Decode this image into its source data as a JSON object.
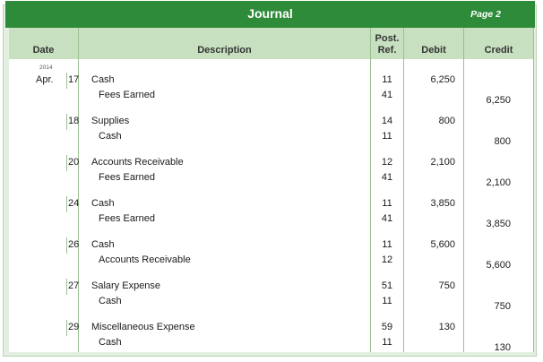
{
  "journal": {
    "title": "Journal",
    "page": "Page 2",
    "headers": {
      "date": "Date",
      "description": "Description",
      "post_ref": [
        "Post.",
        "Ref."
      ],
      "debit": "Debit",
      "credit": "Credit"
    },
    "year": "2014",
    "month": "Apr.",
    "entries": [
      {
        "day": "17",
        "lines": [
          {
            "desc": "Cash",
            "indent": false,
            "ref": "11",
            "debit": "6,250",
            "credit": ""
          },
          {
            "desc": "Fees Earned",
            "indent": true,
            "ref": "41",
            "debit": "",
            "credit": "6,250"
          }
        ]
      },
      {
        "day": "18",
        "lines": [
          {
            "desc": "Supplies",
            "indent": false,
            "ref": "14",
            "debit": "800",
            "credit": ""
          },
          {
            "desc": "Cash",
            "indent": true,
            "ref": "11",
            "debit": "",
            "credit": "800"
          }
        ]
      },
      {
        "day": "20",
        "lines": [
          {
            "desc": "Accounts Receivable",
            "indent": false,
            "ref": "12",
            "debit": "2,100",
            "credit": ""
          },
          {
            "desc": "Fees Earned",
            "indent": true,
            "ref": "41",
            "debit": "",
            "credit": "2,100"
          }
        ]
      },
      {
        "day": "24",
        "lines": [
          {
            "desc": "Cash",
            "indent": false,
            "ref": "11",
            "debit": "3,850",
            "credit": ""
          },
          {
            "desc": "Fees Earned",
            "indent": true,
            "ref": "41",
            "debit": "",
            "credit": "3,850"
          }
        ]
      },
      {
        "day": "26",
        "lines": [
          {
            "desc": "Cash",
            "indent": false,
            "ref": "11",
            "debit": "5,600",
            "credit": ""
          },
          {
            "desc": "Accounts Receivable",
            "indent": true,
            "ref": "12",
            "debit": "",
            "credit": "5,600"
          }
        ]
      },
      {
        "day": "27",
        "lines": [
          {
            "desc": "Salary Expense",
            "indent": false,
            "ref": "51",
            "debit": "750",
            "credit": ""
          },
          {
            "desc": "Cash",
            "indent": true,
            "ref": "11",
            "debit": "",
            "credit": "750"
          }
        ]
      },
      {
        "day": "29",
        "lines": [
          {
            "desc": "Miscellaneous Expense",
            "indent": false,
            "ref": "59",
            "debit": "130",
            "credit": ""
          },
          {
            "desc": "Cash",
            "indent": true,
            "ref": "11",
            "debit": "",
            "credit": "130"
          }
        ]
      }
    ]
  }
}
